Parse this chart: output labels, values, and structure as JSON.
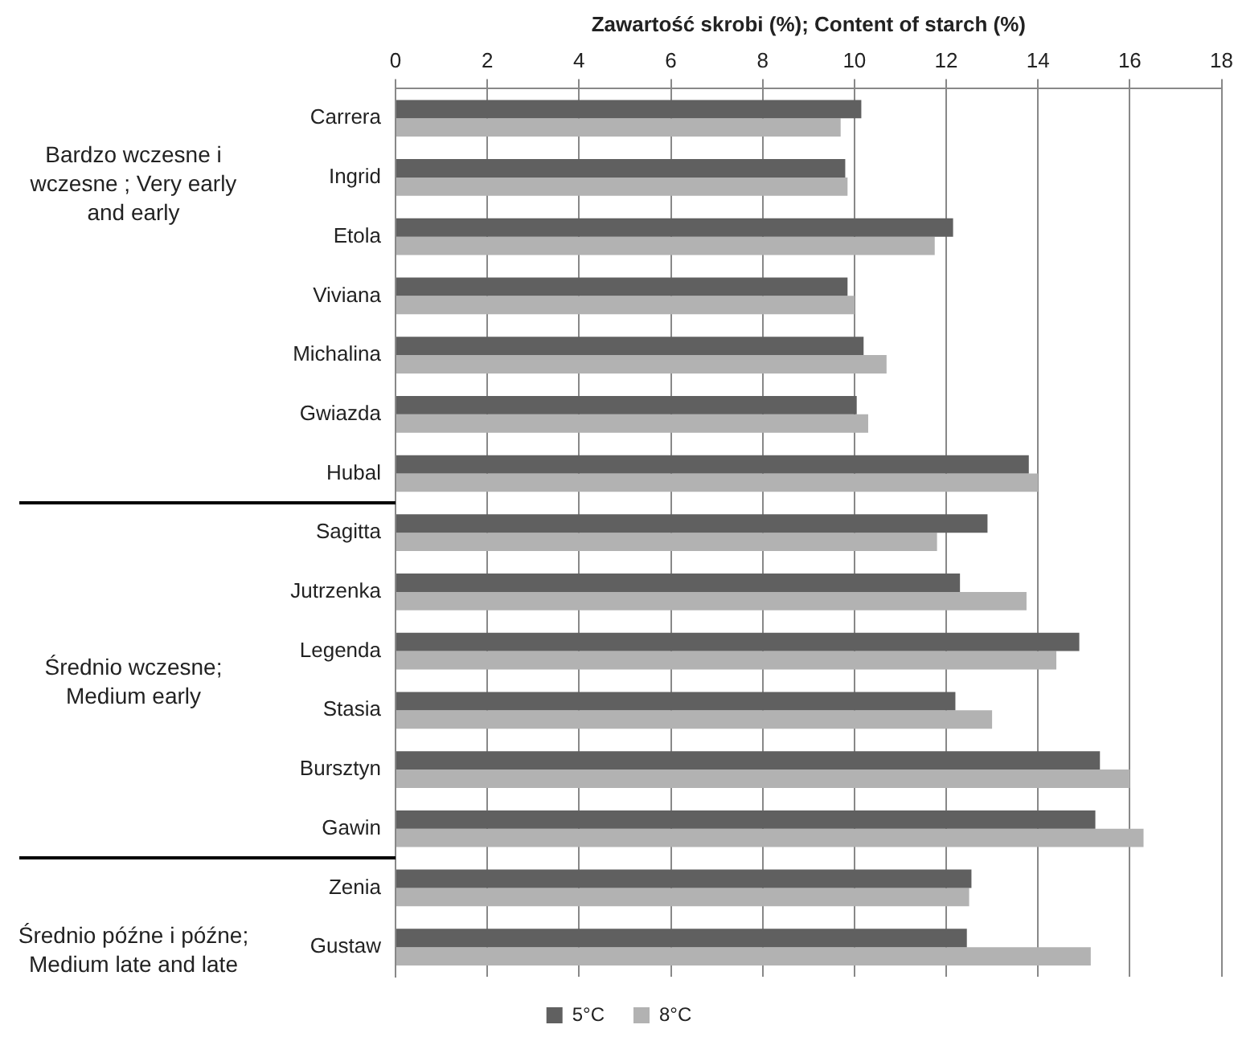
{
  "chart_data": {
    "type": "bar",
    "orientation": "horizontal",
    "xlabel": "Zawartość skrobi (%); Content of starch (%)",
    "categories": [
      "Carrera",
      "Ingrid",
      "Etola",
      "Viviana",
      "Michalina",
      "Gwiazda",
      "Hubal",
      "Sagitta",
      "Jutrzenka",
      "Legenda",
      "Stasia",
      "Bursztyn",
      "Gawin",
      "Zenia",
      "Gustaw"
    ],
    "series": [
      {
        "name": "5°C",
        "color": "#606060",
        "values": [
          10.15,
          9.8,
          12.15,
          9.85,
          10.2,
          10.05,
          13.8,
          12.9,
          12.3,
          14.9,
          12.2,
          15.35,
          15.25,
          12.55,
          12.45
        ]
      },
      {
        "name": "8°C",
        "color": "#b2b2b2",
        "values": [
          9.7,
          9.85,
          11.75,
          10.0,
          10.7,
          10.3,
          14.0,
          11.8,
          13.75,
          14.4,
          13.0,
          16.0,
          16.3,
          12.5,
          15.15
        ]
      }
    ],
    "xlim": [
      0,
      18
    ],
    "xticks": [
      0,
      2,
      4,
      6,
      8,
      10,
      12,
      14,
      16,
      18
    ],
    "annotations": [
      "Bardzo wczesne i wczesne ; Very early and early",
      "Średnio wczesne; Medium early",
      "Średnio  późne i późne; Medium late and late"
    ],
    "grid": "x",
    "legend": "bottom"
  }
}
